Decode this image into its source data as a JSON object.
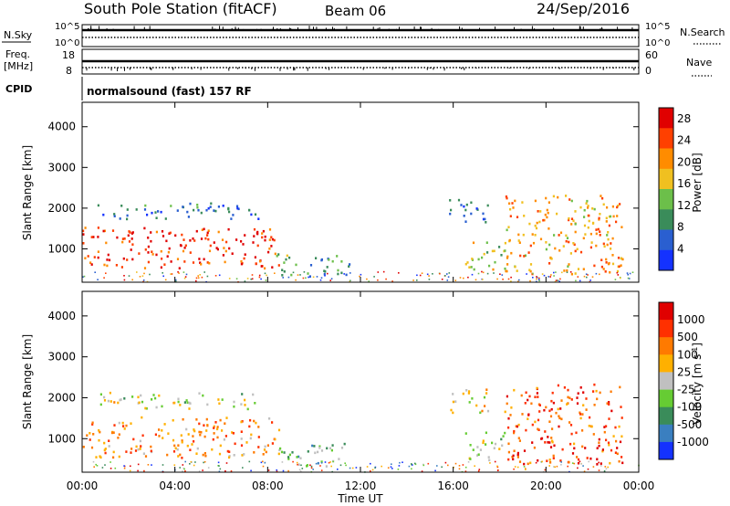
{
  "header": {
    "title": "South Pole Station (fitACF)",
    "beam": "Beam 06",
    "date": "24/Sep/2016"
  },
  "panels": {
    "nsky": {
      "left_label": "N.Sky",
      "ytick_top": "10^5",
      "ytick_bottom": "10^0",
      "right_label": "N.Search",
      "right_ytick_top": "10^5",
      "right_ytick_bottom": "10^0"
    },
    "freq": {
      "left_label_1": "Freq.",
      "left_label_2": "[MHz]",
      "ytick_top": "18",
      "ytick_bottom": "8",
      "right_label": "Nave",
      "right_ytick_top": "60",
      "right_ytick_bottom": "0"
    },
    "cpid": {
      "label": "CPID",
      "text": "normalsound (fast) 157 RF"
    }
  },
  "chart_data": [
    {
      "type": "heatmap",
      "name": "power",
      "ylabel": "Slant Range [km]",
      "yticks": [
        "1000",
        "2000",
        "3000",
        "4000"
      ],
      "ylim": [
        180,
        4600
      ],
      "xlim_hours": [
        0,
        24
      ],
      "colorbar": {
        "label": "Power [dB]",
        "ticks": [
          "4",
          "8",
          "12",
          "16",
          "20",
          "24",
          "28"
        ],
        "range": [
          0,
          30
        ],
        "colors": [
          "#1432ff",
          "#2a5fd0",
          "#3a8c5a",
          "#6cbf4a",
          "#f0c020",
          "#ff8c00",
          "#ff4000",
          "#e00000"
        ]
      },
      "regions": [
        {
          "t0": 0.0,
          "t1": 8.5,
          "r0": 550,
          "r1": 1550,
          "level": 0.85
        },
        {
          "t0": 0.5,
          "t1": 7.6,
          "r0": 1750,
          "r1": 2150,
          "level": 0.25
        },
        {
          "t0": 8.3,
          "t1": 11.5,
          "r0": 350,
          "r1": 900,
          "level": 0.35
        },
        {
          "t0": 15.8,
          "t1": 17.5,
          "r0": 1650,
          "r1": 2250,
          "level": 0.2
        },
        {
          "t0": 16.5,
          "t1": 18.3,
          "r0": 500,
          "r1": 1200,
          "level": 0.5
        },
        {
          "t0": 18.2,
          "t1": 23.3,
          "r0": 400,
          "r1": 2350,
          "level": 0.65
        }
      ]
    },
    {
      "type": "heatmap",
      "name": "velocity",
      "ylabel": "Slant Range [km]",
      "yticks": [
        "1000",
        "2000",
        "3000",
        "4000"
      ],
      "ylim": [
        180,
        4600
      ],
      "xlim_hours": [
        0,
        24
      ],
      "colorbar": {
        "label": "Velocity [m s",
        "label_sup": "-1",
        "label_end": "]",
        "ticks": [
          "1000",
          "500",
          "100",
          "25",
          "-25",
          "-100",
          "-500",
          "-1000"
        ],
        "colors": [
          "#1432ff",
          "#3a7fc0",
          "#3a8c5a",
          "#66cc33",
          "#c0c0c0",
          "#ffb000",
          "#ff7a00",
          "#ff3000",
          "#e00000"
        ]
      },
      "regions": [
        {
          "t0": 0.0,
          "t1": 8.5,
          "r0": 550,
          "r1": 1550,
          "level": 0.68
        },
        {
          "t0": 0.5,
          "t1": 7.6,
          "r0": 1750,
          "r1": 2150,
          "level": 0.5
        },
        {
          "t0": 8.3,
          "t1": 11.5,
          "r0": 350,
          "r1": 900,
          "level": 0.38
        },
        {
          "t0": 15.8,
          "t1": 17.5,
          "r0": 1650,
          "r1": 2250,
          "level": 0.55
        },
        {
          "t0": 16.5,
          "t1": 18.3,
          "r0": 500,
          "r1": 1200,
          "level": 0.45
        },
        {
          "t0": 18.2,
          "t1": 23.3,
          "r0": 400,
          "r1": 2350,
          "level": 0.8
        }
      ]
    }
  ],
  "xaxis": {
    "label": "Time UT",
    "ticks": [
      "00:00",
      "04:00",
      "08:00",
      "12:00",
      "16:00",
      "20:00",
      "00:00"
    ]
  }
}
